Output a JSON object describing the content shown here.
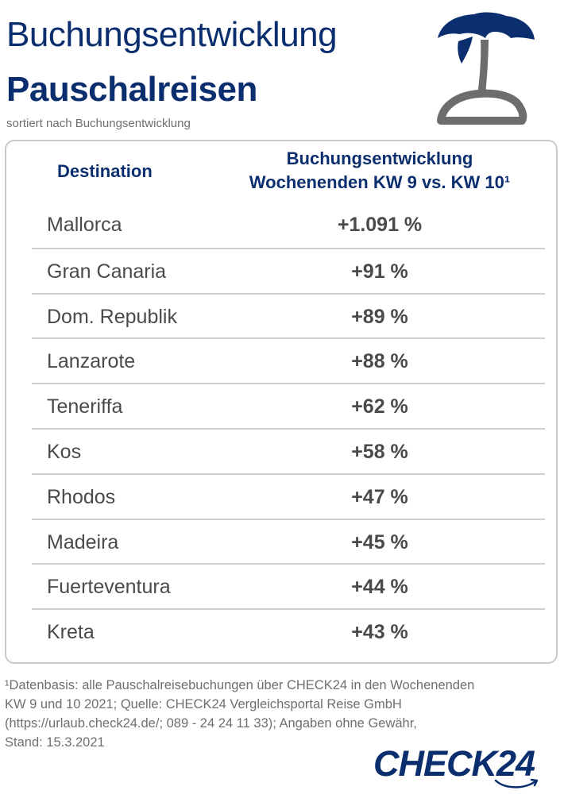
{
  "header": {
    "title_line1": "Buchungsentwicklung",
    "title_line2": "Pauschalreisen",
    "subtitle": "sortiert nach Buchungsentwicklung",
    "icon": "palm-island-icon"
  },
  "table": {
    "col_destination": "Destination",
    "col_growth_line1": "Buchungsentwicklung",
    "col_growth_line2": "Wochenenden KW 9 vs. KW 10¹",
    "rows": [
      {
        "destination": "Mallorca",
        "value": "+1.091 %"
      },
      {
        "destination": "Gran Canaria",
        "value": "+91 %"
      },
      {
        "destination": "Dom. Republik",
        "value": "+89 %"
      },
      {
        "destination": "Lanzarote",
        "value": "+88 %"
      },
      {
        "destination": "Teneriffa",
        "value": "+62 %"
      },
      {
        "destination": "Kos",
        "value": "+58 %"
      },
      {
        "destination": "Rhodos",
        "value": "+47 %"
      },
      {
        "destination": "Madeira",
        "value": "+45 %"
      },
      {
        "destination": "Fuerteventura",
        "value": "+44 %"
      },
      {
        "destination": "Kreta",
        "value": "+43 %"
      }
    ]
  },
  "footnote": {
    "line1": "¹Datenbasis: alle Pauschalreisebuchungen über CHECK24 in den Wochenenden",
    "line2": "KW 9 und 10 2021; Quelle: CHECK24 Vergleichsportal Reise GmbH",
    "line3": "(https://urlaub.check24.de/; 089 - 24 24 11 33); Angaben ohne Gewähr,",
    "line4": "Stand: 15.3.2021"
  },
  "logo": {
    "text": "CHECK24"
  },
  "colors": {
    "brand_navy": "#0b2e6e",
    "text_gray": "#4a4a4a",
    "icon_gray": "#6d6d6d",
    "border_gray": "#c9c9c9"
  }
}
